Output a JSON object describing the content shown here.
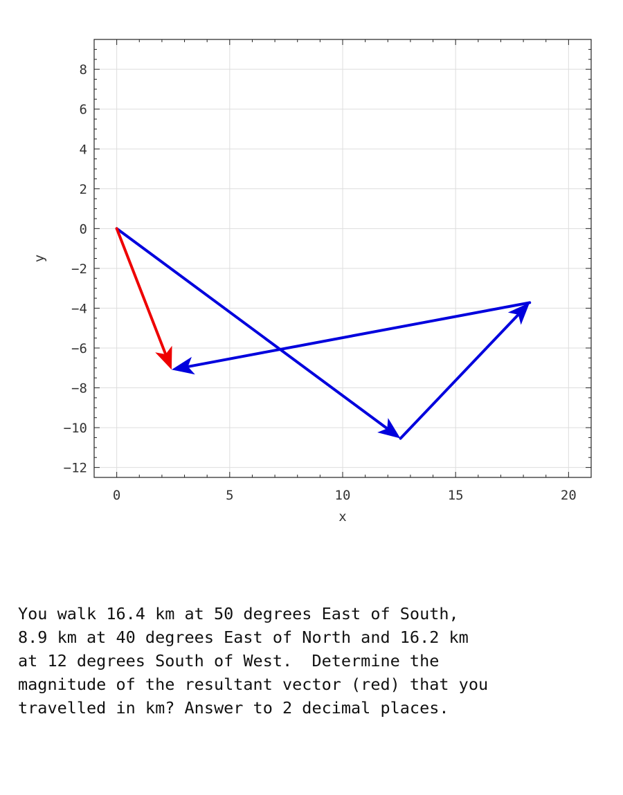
{
  "chart_data": {
    "type": "vector-diagram",
    "xlabel": "x",
    "ylabel": "y",
    "xlim": [
      -1,
      21
    ],
    "ylim": [
      -12.5,
      9.5
    ],
    "xticks": [
      0,
      5,
      10,
      15,
      20
    ],
    "yticks": [
      -12,
      -10,
      -8,
      -6,
      -4,
      -2,
      0,
      2,
      4,
      6,
      8
    ],
    "grid": true,
    "vectors": [
      {
        "role": "displacement",
        "from": [
          0,
          0
        ],
        "to": [
          12.56,
          -10.54
        ],
        "color": "#0000dd"
      },
      {
        "role": "displacement",
        "from": [
          12.56,
          -10.54
        ],
        "to": [
          18.28,
          -3.72
        ],
        "color": "#0000dd"
      },
      {
        "role": "displacement",
        "from": [
          18.28,
          -3.72
        ],
        "to": [
          2.43,
          -7.09
        ],
        "color": "#0000dd"
      },
      {
        "role": "resultant",
        "from": [
          0,
          0
        ],
        "to": [
          2.43,
          -7.09
        ],
        "color": "#ee0000"
      }
    ]
  },
  "question": {
    "lines": [
      "You walk 16.4 km at 50 degrees East of South,",
      "8.9 km at 40 degrees East of North and 16.2 km",
      "at 12 degrees South of West.  Determine the",
      "magnitude of the resultant vector (red) that you",
      "travelled in km? Answer to 2 decimal places."
    ]
  }
}
